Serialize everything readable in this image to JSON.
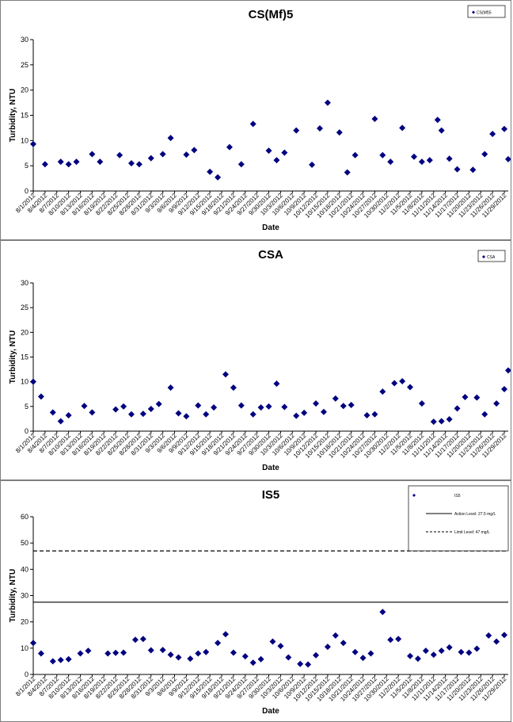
{
  "dates": [
    "8/1/2012",
    "8/4/2012",
    "8/7/2012",
    "8/10/2012",
    "8/13/2012",
    "8/16/2012",
    "8/19/2012",
    "8/22/2012",
    "8/25/2012",
    "8/28/2012",
    "8/31/2012",
    "9/3/2012",
    "9/6/2012",
    "9/9/2012",
    "9/12/2012",
    "9/15/2012",
    "9/18/2012",
    "9/21/2012",
    "9/24/2012",
    "9/27/2012",
    "9/30/2012",
    "10/3/2012",
    "10/6/2012",
    "10/9/2012",
    "10/12/2012",
    "10/15/2012",
    "10/18/2012",
    "10/21/2012",
    "10/24/2012",
    "10/27/2012",
    "10/30/2012",
    "11/2/2012",
    "11/5/2012",
    "11/8/2012",
    "11/11/2012",
    "11/14/2012",
    "11/17/2012",
    "11/20/2012",
    "11/23/2012",
    "11/26/2012",
    "11/29/2012"
  ],
  "chart_data": [
    {
      "type": "scatter",
      "title": "CS(Mf)5",
      "xlabel": "Date",
      "ylabel": "Turbidity, NTU",
      "ylim": [
        0,
        30
      ],
      "yticks": [
        0,
        5,
        10,
        15,
        20,
        25,
        30
      ],
      "x_axis": "dates 8/1/2012 to 11/29/2012, tick every 3 days",
      "legend": {
        "position": "top-right",
        "entries": [
          "CS(Mf)5"
        ]
      },
      "color": "#000080",
      "series": [
        {
          "name": "CS(Mf)5",
          "x": [
            "8/1/2012",
            "8/4/2012",
            "8/8/2012",
            "8/10/2012",
            "8/12/2012",
            "8/16/2012",
            "8/18/2012",
            "8/23/2012",
            "8/26/2012",
            "8/28/2012",
            "8/31/2012",
            "9/3/2012",
            "9/5/2012",
            "9/9/2012",
            "9/11/2012",
            "9/15/2012",
            "9/17/2012",
            "9/20/2012",
            "9/23/2012",
            "9/26/2012",
            "9/30/2012",
            "10/2/2012",
            "10/4/2012",
            "10/7/2012",
            "10/11/2012",
            "10/13/2012",
            "10/15/2012",
            "10/18/2012",
            "10/20/2012",
            "10/22/2012",
            "10/27/2012",
            "10/29/2012",
            "10/31/2012",
            "11/3/2012",
            "11/6/2012",
            "11/8/2012",
            "11/10/2012",
            "11/12/2012",
            "11/13/2012",
            "11/15/2012",
            "11/17/2012",
            "11/21/2012",
            "11/24/2012",
            "11/26/2012",
            "11/29/2012",
            "11/30/2012"
          ],
          "values": [
            9.3,
            5.3,
            5.8,
            5.3,
            5.8,
            7.3,
            5.8,
            7.1,
            5.5,
            5.3,
            6.5,
            7.3,
            10.5,
            7.2,
            8.1,
            3.8,
            2.7,
            8.7,
            5.3,
            13.3,
            8.0,
            6.1,
            7.6,
            12.0,
            5.2,
            12.4,
            17.5,
            11.6,
            3.7,
            7.1,
            14.3,
            7.1,
            5.8,
            12.5,
            6.8,
            5.8,
            6.1,
            14.1,
            12.0,
            6.4,
            4.3,
            4.2,
            7.3,
            11.3,
            12.3,
            6.3
          ]
        }
      ]
    },
    {
      "type": "scatter",
      "title": "CSA",
      "xlabel": "Date",
      "ylabel": "Turbidity, NTU",
      "ylim": [
        0,
        30
      ],
      "yticks": [
        0,
        5,
        10,
        15,
        20,
        25,
        30
      ],
      "x_axis": "dates 8/1/2012 to 11/29/2012, tick every 3 days",
      "legend": {
        "position": "top-right",
        "entries": [
          "CSA"
        ]
      },
      "color": "#000080",
      "series": [
        {
          "name": "CSA",
          "x": [
            "8/1/2012",
            "8/3/2012",
            "8/6/2012",
            "8/8/2012",
            "8/10/2012",
            "8/14/2012",
            "8/16/2012",
            "8/22/2012",
            "8/24/2012",
            "8/26/2012",
            "8/29/2012",
            "8/31/2012",
            "9/2/2012",
            "9/5/2012",
            "9/7/2012",
            "9/9/2012",
            "9/12/2012",
            "9/14/2012",
            "9/16/2012",
            "9/19/2012",
            "9/21/2012",
            "9/23/2012",
            "9/26/2012",
            "9/28/2012",
            "9/30/2012",
            "10/2/2012",
            "10/4/2012",
            "10/7/2012",
            "10/9/2012",
            "10/12/2012",
            "10/14/2012",
            "10/17/2012",
            "10/19/2012",
            "10/21/2012",
            "10/25/2012",
            "10/27/2012",
            "10/29/2012",
            "11/1/2012",
            "11/3/2012",
            "11/5/2012",
            "11/8/2012",
            "11/11/2012",
            "11/13/2012",
            "11/15/2012",
            "11/17/2012",
            "11/19/2012",
            "11/22/2012",
            "11/24/2012",
            "11/27/2012",
            "11/29/2012",
            "11/30/2012"
          ],
          "values": [
            10.0,
            7.0,
            3.8,
            2.0,
            3.2,
            5.1,
            3.8,
            4.4,
            5.0,
            3.4,
            3.5,
            4.5,
            5.5,
            8.8,
            3.6,
            3.0,
            5.2,
            3.4,
            4.8,
            11.5,
            8.8,
            5.2,
            3.4,
            4.8,
            5.0,
            9.6,
            4.9,
            3.1,
            3.7,
            5.6,
            3.9,
            6.6,
            5.1,
            5.3,
            3.2,
            3.4,
            8.0,
            9.7,
            10.1,
            8.9,
            5.6,
            1.9,
            2.0,
            2.4,
            4.6,
            6.9,
            6.8,
            3.4,
            5.6,
            8.5,
            12.3
          ]
        }
      ]
    },
    {
      "type": "scatter",
      "title": "IS5",
      "xlabel": "Date",
      "ylabel": "Turbidity, NTU",
      "ylim": [
        0,
        60
      ],
      "yticks": [
        0,
        10,
        20,
        30,
        40,
        50,
        60
      ],
      "x_axis": "dates 8/1/2012 to 11/29/2012, tick every 3 days",
      "legend": {
        "position": "top-right",
        "entries": [
          "IS5",
          "Action Level: 27.5 mg/L",
          "Limit Level: 47 mg/L"
        ]
      },
      "color": "#000080",
      "reference_lines": [
        {
          "name": "Action Level: 27.5 mg/L",
          "value": 27.5,
          "style": "solid"
        },
        {
          "name": "Limit Level: 47 mg/L",
          "value": 47,
          "style": "dashed"
        }
      ],
      "series": [
        {
          "name": "IS5",
          "x": [
            "8/1/2012",
            "8/3/2012",
            "8/6/2012",
            "8/8/2012",
            "8/10/2012",
            "8/13/2012",
            "8/15/2012",
            "8/20/2012",
            "8/22/2012",
            "8/24/2012",
            "8/27/2012",
            "8/29/2012",
            "8/31/2012",
            "9/3/2012",
            "9/5/2012",
            "9/7/2012",
            "9/10/2012",
            "9/12/2012",
            "9/14/2012",
            "9/17/2012",
            "9/19/2012",
            "9/21/2012",
            "9/24/2012",
            "9/26/2012",
            "9/28/2012",
            "10/1/2012",
            "10/3/2012",
            "10/5/2012",
            "10/8/2012",
            "10/10/2012",
            "10/12/2012",
            "10/15/2012",
            "10/17/2012",
            "10/19/2012",
            "10/22/2012",
            "10/24/2012",
            "10/26/2012",
            "10/29/2012",
            "10/31/2012",
            "11/2/2012",
            "11/5/2012",
            "11/7/2012",
            "11/9/2012",
            "11/11/2012",
            "11/13/2012",
            "11/15/2012",
            "11/18/2012",
            "11/20/2012",
            "11/22/2012",
            "11/25/2012",
            "11/27/2012",
            "11/29/2012"
          ],
          "values": [
            12.0,
            8.0,
            5.0,
            5.5,
            5.8,
            8.0,
            9.0,
            8.0,
            8.2,
            8.3,
            13.2,
            13.5,
            9.2,
            9.3,
            7.5,
            6.5,
            6.0,
            8.0,
            8.5,
            12.0,
            15.3,
            8.3,
            6.9,
            4.5,
            5.8,
            12.5,
            10.8,
            6.5,
            4.0,
            3.8,
            7.3,
            10.5,
            14.8,
            12.0,
            8.5,
            6.3,
            8.0,
            23.8,
            13.2,
            13.5,
            7.0,
            6.0,
            9.0,
            7.5,
            9.0,
            10.3,
            8.5,
            8.3,
            9.8,
            14.8,
            12.5,
            15.0
          ]
        }
      ]
    }
  ]
}
